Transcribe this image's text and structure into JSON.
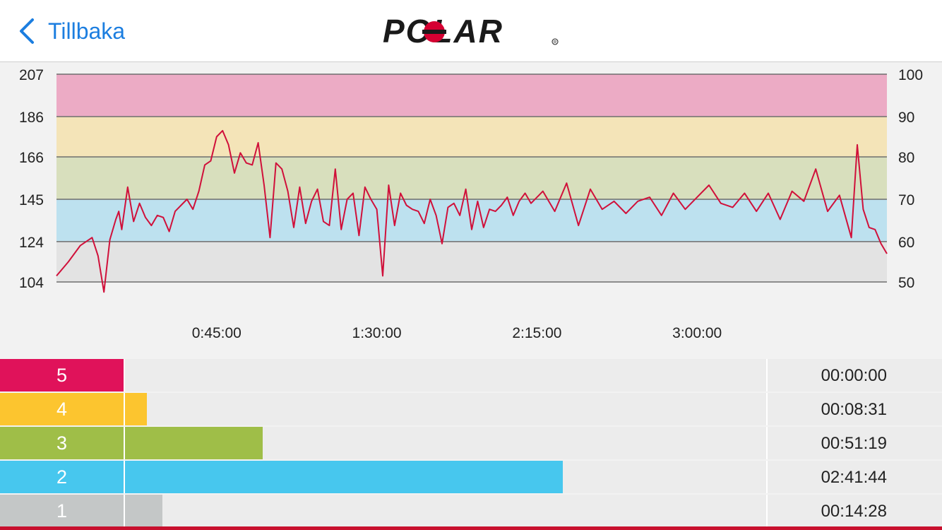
{
  "header": {
    "back_label": "Tillbaka",
    "brand": "POLAR",
    "accent": "#1c7ee0"
  },
  "chart_data": {
    "type": "line",
    "xlabel": "",
    "ylabel": "",
    "x_tick_labels": [
      "0:45:00",
      "1:30:00",
      "2:15:00",
      "3:00:00"
    ],
    "x_ticks_seconds": [
      2700,
      5400,
      8100,
      10800
    ],
    "xlim_seconds": [
      0,
      14000
    ],
    "y_left_ticks": [
      104,
      124,
      145,
      166,
      186,
      207
    ],
    "y_right_ticks": [
      50,
      60,
      70,
      80,
      90,
      100
    ],
    "ylim": [
      96,
      207
    ],
    "zones": [
      {
        "zone": 5,
        "from": 186,
        "to": 207,
        "color": "#ecabc5"
      },
      {
        "zone": 4,
        "from": 166,
        "to": 186,
        "color": "#f4e4b8"
      },
      {
        "zone": 3,
        "from": 145,
        "to": 166,
        "color": "#d8dfbd"
      },
      {
        "zone": 2,
        "from": 124,
        "to": 145,
        "color": "#bde1ef"
      },
      {
        "zone": 1,
        "from": 104,
        "to": 124,
        "color": "#e3e3e3"
      }
    ],
    "series": [
      {
        "color": "#d0103a",
        "x": [
          0,
          200,
          400,
          600,
          700,
          800,
          900,
          1000,
          1050,
          1100,
          1200,
          1300,
          1400,
          1500,
          1600,
          1700,
          1800,
          1900,
          2000,
          2100,
          2200,
          2300,
          2400,
          2500,
          2600,
          2700,
          2800,
          2900,
          3000,
          3100,
          3200,
          3300,
          3400,
          3500,
          3600,
          3700,
          3800,
          3900,
          4000,
          4100,
          4200,
          4300,
          4400,
          4500,
          4600,
          4700,
          4800,
          4900,
          5000,
          5100,
          5200,
          5300,
          5400,
          5500,
          5600,
          5700,
          5800,
          5900,
          6000,
          6100,
          6200,
          6300,
          6400,
          6500,
          6600,
          6700,
          6800,
          6900,
          7000,
          7100,
          7200,
          7300,
          7400,
          7500,
          7600,
          7700,
          7800,
          7900,
          8000,
          8200,
          8400,
          8600,
          8800,
          9000,
          9200,
          9400,
          9600,
          9800,
          10000,
          10200,
          10400,
          10600,
          10800,
          11000,
          11200,
          11400,
          11600,
          11800,
          12000,
          12200,
          12400,
          12600,
          12800,
          13000,
          13200,
          13400,
          13500,
          13600,
          13700,
          13800,
          13900,
          14000
        ],
        "y": [
          107,
          114,
          122,
          126,
          117,
          99,
          125,
          135,
          139,
          130,
          151,
          134,
          143,
          136,
          132,
          137,
          136,
          129,
          139,
          142,
          145,
          140,
          149,
          162,
          164,
          176,
          179,
          172,
          158,
          168,
          163,
          162,
          173,
          152,
          126,
          163,
          160,
          149,
          131,
          151,
          133,
          144,
          150,
          134,
          132,
          160,
          130,
          145,
          148,
          127,
          151,
          145,
          140,
          107,
          152,
          132,
          148,
          142,
          140,
          139,
          133,
          145,
          137,
          123,
          141,
          143,
          137,
          150,
          130,
          144,
          131,
          140,
          139,
          142,
          146,
          137,
          144,
          148,
          143,
          149,
          139,
          153,
          132,
          150,
          140,
          144,
          138,
          144,
          146,
          137,
          148,
          140,
          146,
          152,
          143,
          141,
          148,
          139,
          148,
          135,
          149,
          144,
          160,
          139,
          147,
          126,
          172,
          140,
          131,
          130,
          123,
          118
        ]
      }
    ]
  },
  "zone_summary": [
    {
      "zone": "5",
      "time": "00:00:00",
      "fraction": 0.0,
      "color": "#e0125a"
    },
    {
      "zone": "4",
      "time": "00:08:31",
      "fraction": 0.053,
      "color": "#fcc52f"
    },
    {
      "zone": "3",
      "time": "00:51:19",
      "fraction": 0.316,
      "color": "#9fbe48"
    },
    {
      "zone": "2",
      "time": "02:41:44",
      "fraction": 1.0,
      "color": "#47c7ee"
    },
    {
      "zone": "1",
      "time": "00:14:28",
      "fraction": 0.089,
      "color": "#c4c7c7"
    }
  ]
}
